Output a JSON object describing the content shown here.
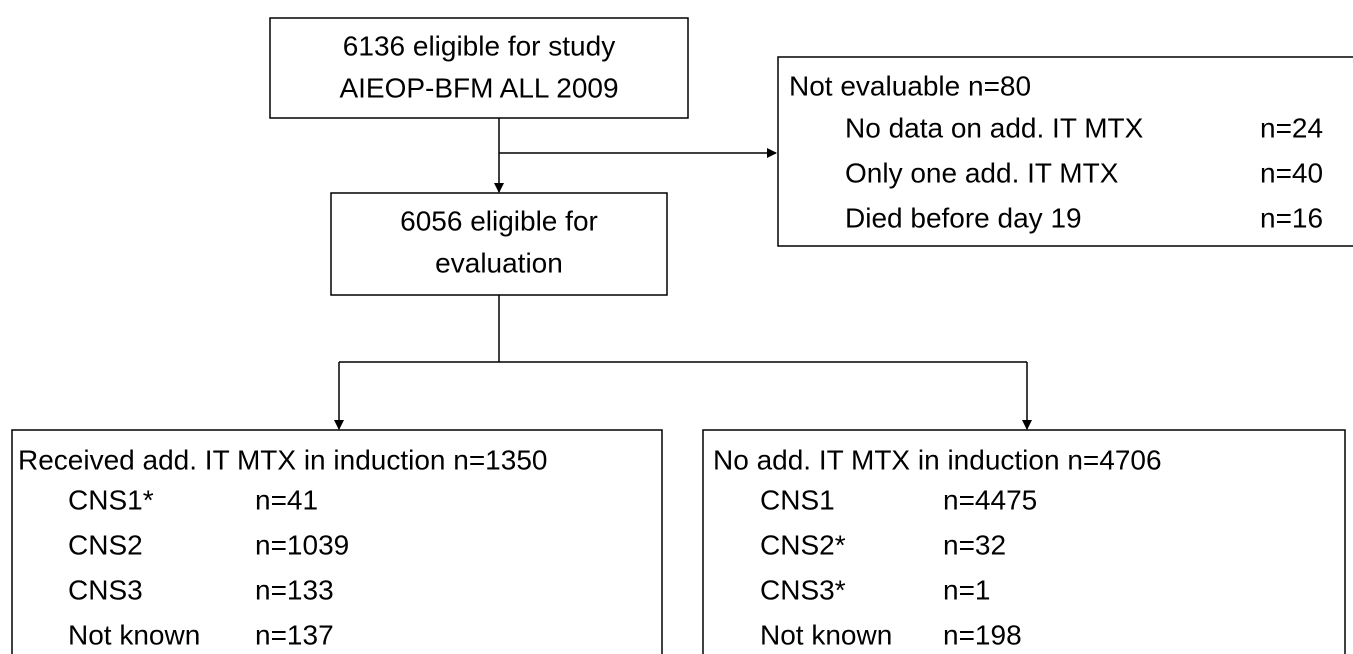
{
  "top_box": {
    "lines": [
      "6136 eligible for study",
      "AIEOP-BFM ALL 2009"
    ]
  },
  "exclusions": {
    "title": "Not evaluable n=80",
    "items": [
      {
        "label": "No data on add. IT MTX",
        "count": "n=24"
      },
      {
        "label": "Only one add. IT MTX",
        "count": "n=40"
      },
      {
        "label": "Died before day 19",
        "count": "n=16"
      }
    ]
  },
  "middle_box": {
    "lines": [
      "6056 eligible for",
      "evaluation"
    ]
  },
  "groups": [
    {
      "title": "Received add. IT MTX in induction n=1350",
      "items": [
        {
          "label": "CNS1*",
          "count": "n=41"
        },
        {
          "label": "CNS2",
          "count": "n=1039"
        },
        {
          "label": "CNS3",
          "count": "n=133"
        },
        {
          "label": "Not known",
          "count": "n=137"
        }
      ]
    },
    {
      "title": "No add. IT MTX in induction n=4706",
      "items": [
        {
          "label": "CNS1",
          "count": "n=4475"
        },
        {
          "label": "CNS2*",
          "count": "n=32"
        },
        {
          "label": "CNS3*",
          "count": "n=1"
        },
        {
          "label": "Not known",
          "count": "n=198"
        }
      ]
    }
  ]
}
